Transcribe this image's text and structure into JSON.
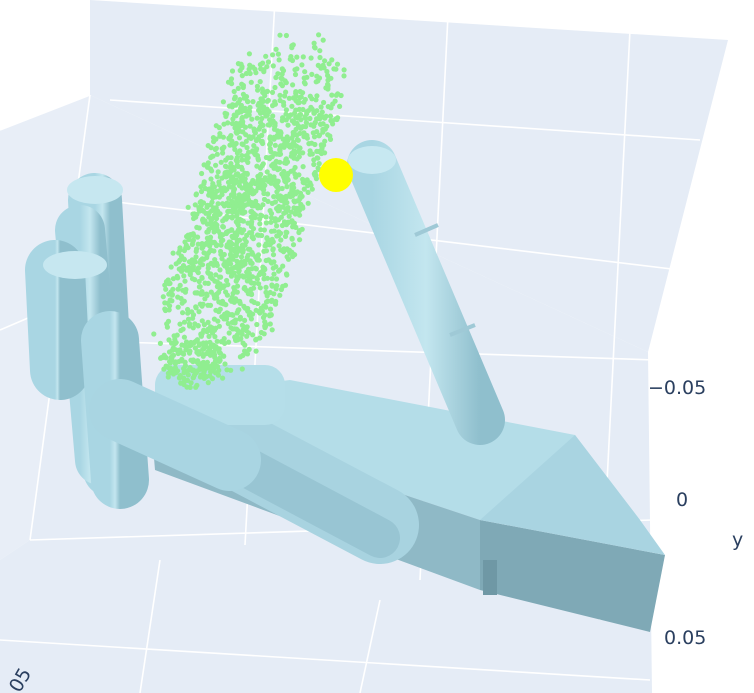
{
  "plot": {
    "type": "3d-scatter-mesh",
    "background": "#e5ecf6",
    "grid_color": "#ffffff",
    "axes": {
      "y": {
        "title": "y",
        "ticks": [
          "−0.05",
          "0",
          "0.05"
        ]
      },
      "x": {
        "ticks_partial": [
          "05"
        ]
      }
    },
    "colors": {
      "hand_mesh": "#add8e6",
      "point_cloud": "#90ee90",
      "contact_point": "#ffff00"
    }
  }
}
